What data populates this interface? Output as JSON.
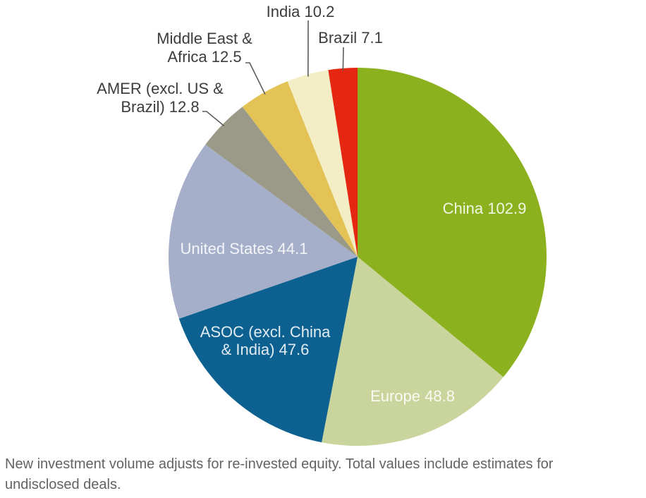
{
  "chart_data": {
    "type": "pie",
    "title": "",
    "legend": "none",
    "label_style": "direct-labels (value after name); large slices labeled inside in white, small slices labeled outside with leader lines",
    "order": "clockwise from 12 o'clock",
    "slices": [
      {
        "name": "China",
        "value": 102.9,
        "label": "China 102.9",
        "label_lines": [
          "China 102.9"
        ],
        "color": "#8CB11E",
        "label_placement": "inside"
      },
      {
        "name": "Europe",
        "value": 48.8,
        "label": "Europe 48.8",
        "label_lines": [
          "Europe 48.8"
        ],
        "color": "#C9D59C",
        "label_placement": "inside"
      },
      {
        "name": "ASOC (excl. China & India)",
        "value": 47.6,
        "label": "ASOC (excl. China & India) 47.6",
        "label_lines": [
          "ASOC (excl. China",
          "& India) 47.6"
        ],
        "color": "#0D6190",
        "label_placement": "inside"
      },
      {
        "name": "United States",
        "value": 44.1,
        "label": "United States 44.1",
        "label_lines": [
          "United States 44.1"
        ],
        "color": "#A5AFC9",
        "label_placement": "inside"
      },
      {
        "name": "AMER (excl. US & Brazil)",
        "value": 12.8,
        "label": "AMER (excl. US & Brazil) 12.8",
        "label_lines": [
          "AMER (excl. US &",
          "Brazil) 12.8"
        ],
        "color": "#9B9A89",
        "label_placement": "outside"
      },
      {
        "name": "Middle East & Africa",
        "value": 12.5,
        "label": "Middle East & Africa 12.5",
        "label_lines": [
          "Middle East &",
          "Africa 12.5"
        ],
        "color": "#E3C355",
        "label_placement": "outside"
      },
      {
        "name": "India",
        "value": 10.2,
        "label": "India 10.2",
        "label_lines": [
          "India 10.2"
        ],
        "color": "#F4EEC6",
        "label_placement": "outside"
      },
      {
        "name": "Brazil",
        "value": 7.1,
        "label": "Brazil 7.1",
        "label_lines": [
          "Brazil 7.1"
        ],
        "color": "#E52712",
        "label_placement": "outside"
      }
    ],
    "colors": {
      "inner_label_text": "#FFFFFF",
      "outer_label_text": "#3C3C3C",
      "leader_line": "#5C5C5C",
      "footnote_text": "#636363",
      "background": "#FFFFFF"
    },
    "footnote": "New investment volume adjusts for re-invested equity. Total values include estimates for undisclosed deals."
  }
}
